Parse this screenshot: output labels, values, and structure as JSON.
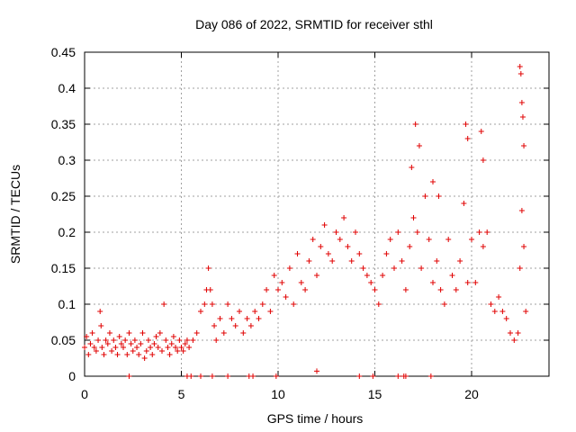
{
  "chart_data": {
    "type": "scatter",
    "title": "Day 086 of 2022, SRMTID for receiver sthl",
    "xlabel": "GPS time / hours",
    "ylabel": "SRMTID / TECUs",
    "xlim": [
      0,
      24
    ],
    "ylim": [
      0,
      0.45
    ],
    "xticks": [
      0,
      5,
      10,
      15,
      20
    ],
    "yticks": [
      0,
      0.05,
      0.1,
      0.15,
      0.2,
      0.25,
      0.3,
      0.35,
      0.4,
      0.45
    ],
    "xtick_labels": [
      "0",
      "5",
      "10",
      "15",
      "20"
    ],
    "ytick_labels": [
      "0",
      "0.05",
      "0.1",
      "0.15",
      "0.2",
      "0.25",
      "0.3",
      "0.35",
      "0.4",
      "0.45"
    ],
    "grid": true,
    "marker": "plus",
    "color": "#e00000",
    "series": [
      {
        "x": [
          0.0,
          0.1,
          0.2,
          0.3,
          0.4,
          0.5,
          0.6,
          0.7,
          0.8,
          0.85,
          0.9,
          1.0,
          1.1,
          1.2,
          1.3,
          1.4,
          1.5,
          1.6,
          1.7,
          1.8,
          1.9,
          2.0,
          2.1,
          2.2,
          2.3,
          2.4,
          2.5,
          2.6,
          2.7,
          2.8,
          2.9,
          3.0,
          3.1,
          3.2,
          3.3,
          3.4,
          3.5,
          3.6,
          3.7,
          3.8,
          3.9,
          4.0,
          4.1,
          4.2,
          4.3,
          4.4,
          4.5,
          4.6,
          4.7,
          4.8,
          4.9,
          5.0,
          5.1,
          5.2,
          5.3,
          5.4,
          5.6,
          5.8,
          6.0,
          6.2,
          6.3,
          6.4,
          6.5,
          6.6,
          6.7,
          6.8,
          7.0,
          7.2,
          7.4,
          7.6,
          7.8,
          8.0,
          8.2,
          8.4,
          8.6,
          8.8,
          9.0,
          9.2,
          9.4,
          9.6,
          9.8,
          10.0,
          10.2,
          10.4,
          10.6,
          10.8,
          11.0,
          11.2,
          11.4,
          11.6,
          11.8,
          12.0,
          12.2,
          12.4,
          12.6,
          12.8,
          13.0,
          13.2,
          13.4,
          13.6,
          13.8,
          14.0,
          14.2,
          14.4,
          14.6,
          14.8,
          15.0,
          15.2,
          15.4,
          15.6,
          15.8,
          16.0,
          16.2,
          16.4,
          16.6,
          16.8,
          17.0,
          17.2,
          17.4,
          17.6,
          17.8,
          18.0,
          18.2,
          18.4,
          18.6,
          18.8,
          19.0,
          19.2,
          19.4,
          19.6,
          19.8,
          20.0,
          20.2,
          20.4,
          20.6,
          20.8,
          21.0,
          21.2,
          21.4,
          21.6,
          21.8,
          22.0,
          22.2,
          22.4,
          22.5,
          22.6,
          22.7,
          22.8
        ],
        "y": [
          0.04,
          0.055,
          0.03,
          0.045,
          0.06,
          0.04,
          0.035,
          0.05,
          0.09,
          0.07,
          0.04,
          0.03,
          0.05,
          0.045,
          0.06,
          0.035,
          0.05,
          0.04,
          0.03,
          0.055,
          0.045,
          0.04,
          0.05,
          0.03,
          0.06,
          0.045,
          0.035,
          0.05,
          0.04,
          0.03,
          0.045,
          0.06,
          0.025,
          0.035,
          0.05,
          0.04,
          0.03,
          0.045,
          0.055,
          0.04,
          0.06,
          0.035,
          0.1,
          0.05,
          0.04,
          0.03,
          0.045,
          0.055,
          0.04,
          0.035,
          0.05,
          0.04,
          0.035,
          0.045,
          0.05,
          0.04,
          0.05,
          0.06,
          0.09,
          0.1,
          0.12,
          0.15,
          0.12,
          0.1,
          0.07,
          0.05,
          0.08,
          0.06,
          0.1,
          0.08,
          0.07,
          0.09,
          0.06,
          0.08,
          0.07,
          0.09,
          0.08,
          0.1,
          0.12,
          0.09,
          0.14,
          0.12,
          0.13,
          0.11,
          0.15,
          0.1,
          0.17,
          0.13,
          0.12,
          0.16,
          0.19,
          0.14,
          0.18,
          0.21,
          0.17,
          0.16,
          0.2,
          0.19,
          0.22,
          0.18,
          0.16,
          0.2,
          0.17,
          0.15,
          0.14,
          0.13,
          0.12,
          0.1,
          0.14,
          0.17,
          0.19,
          0.15,
          0.2,
          0.16,
          0.12,
          0.18,
          0.22,
          0.2,
          0.15,
          0.25,
          0.19,
          0.13,
          0.16,
          0.12,
          0.1,
          0.19,
          0.14,
          0.12,
          0.16,
          0.24,
          0.13,
          0.19,
          0.13,
          0.2,
          0.18,
          0.2,
          0.1,
          0.09,
          0.11,
          0.09,
          0.08,
          0.06,
          0.05,
          0.06,
          0.15,
          0.23,
          0.18,
          0.09
        ]
      },
      {
        "x": [
          2.3,
          5.3,
          5.5,
          6.0,
          6.6,
          7.4,
          8.5,
          8.7,
          9.9,
          12.0,
          14.2,
          14.9,
          16.2,
          16.5,
          16.6,
          17.9
        ],
        "y": [
          0,
          0,
          0,
          0,
          0,
          0,
          0,
          0,
          0,
          0.007,
          0,
          0,
          0,
          0,
          0,
          0
        ]
      },
      {
        "x": [
          16.9,
          17.1,
          17.3,
          18.0,
          18.3,
          19.7,
          19.8,
          20.5,
          20.6,
          22.5,
          22.55,
          22.6,
          22.65,
          22.7
        ],
        "y": [
          0.29,
          0.35,
          0.32,
          0.27,
          0.25,
          0.35,
          0.33,
          0.34,
          0.3,
          0.43,
          0.42,
          0.38,
          0.36,
          0.32
        ]
      }
    ]
  }
}
